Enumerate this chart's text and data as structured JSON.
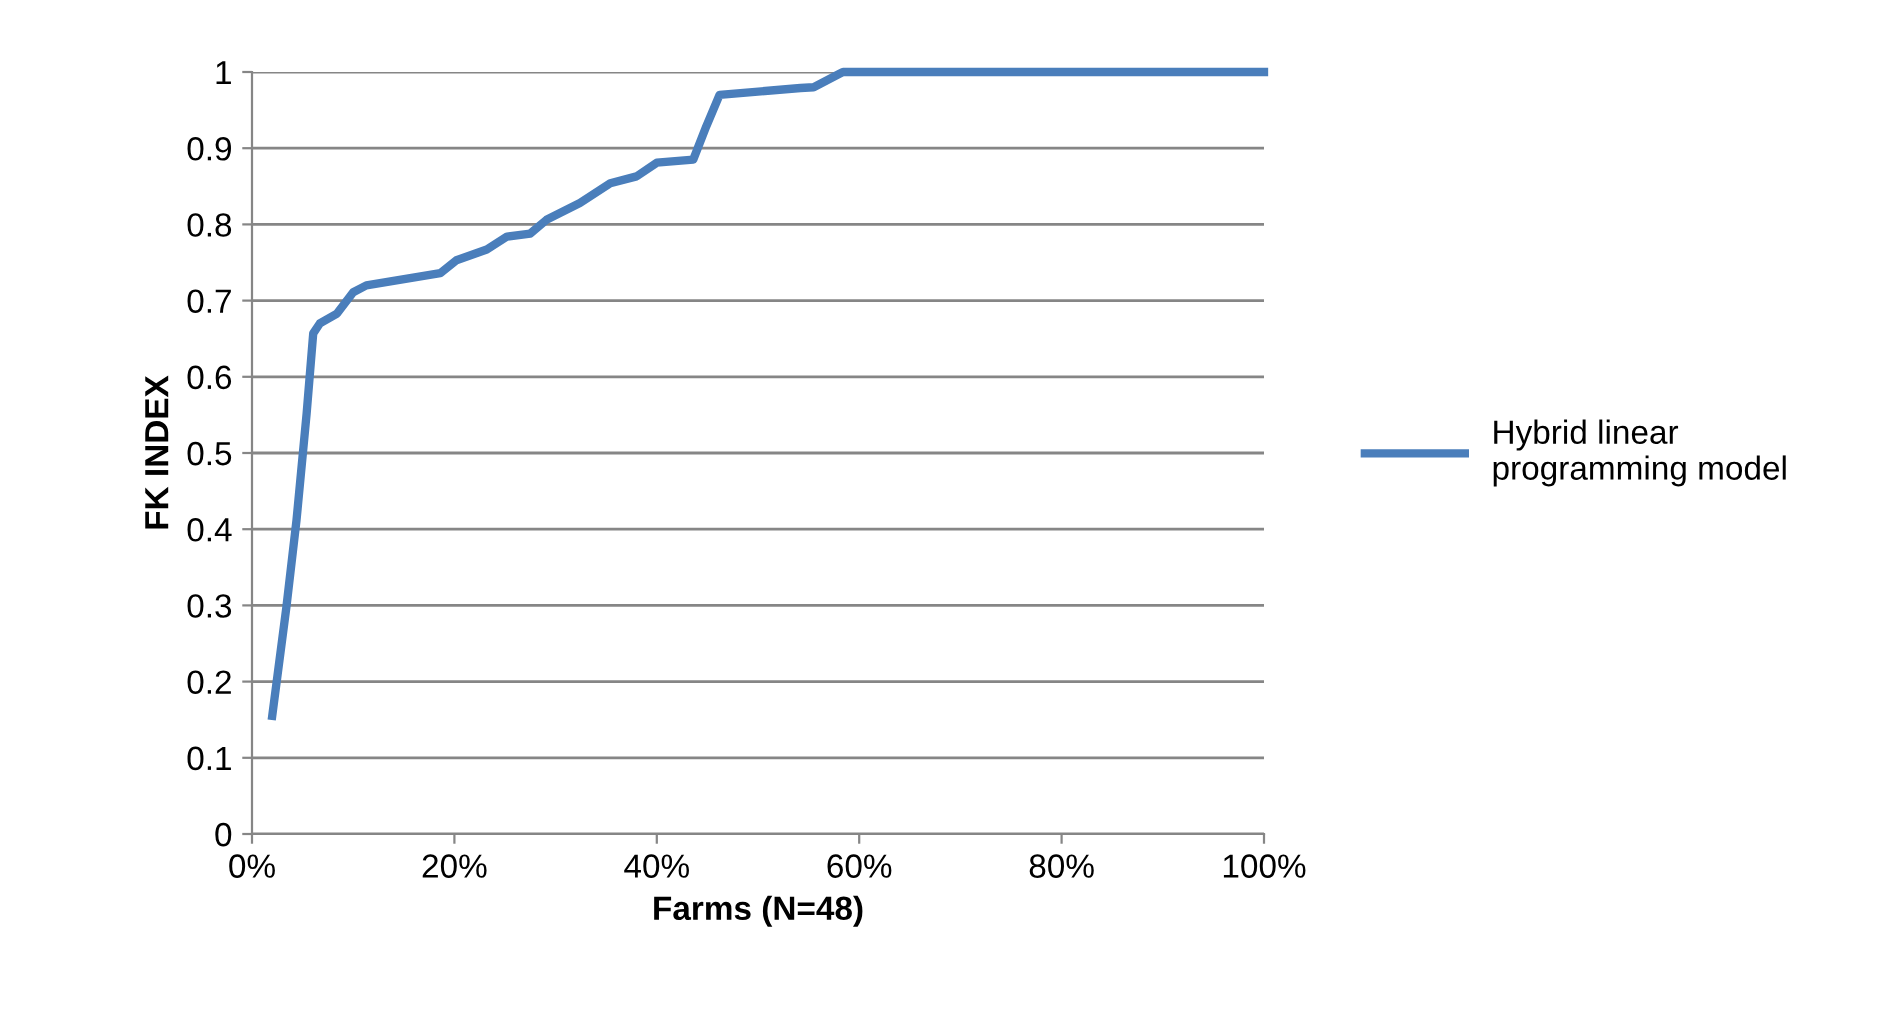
{
  "chart_data": {
    "type": "line",
    "xlabel": "Farms (N=48)",
    "ylabel": "FK INDEX",
    "x": [
      2.0,
      3.4,
      4.4,
      5.4,
      6.05,
      6.7,
      8.4,
      10.0,
      11.3,
      18.6,
      20.2,
      23.2,
      25.2,
      27.5,
      29.1,
      32.4,
      35.4,
      38.0,
      40.0,
      43.6,
      44.9,
      46.2,
      54.2,
      55.5,
      58.1,
      58.4,
      100
    ],
    "series": [
      {
        "name": "Hybrid linear programming model",
        "color": "#4a7ebb",
        "values": [
          0.155,
          0.298,
          0.412,
          0.552,
          0.657,
          0.67,
          0.683,
          0.711,
          0.72,
          0.736,
          0.753,
          0.767,
          0.784,
          0.788,
          0.806,
          0.828,
          0.854,
          0.863,
          0.881,
          0.885,
          0.929,
          0.97,
          0.979,
          0.98,
          0.998,
          1.0,
          1.0
        ]
      }
    ],
    "xlim": [
      0,
      100
    ],
    "xticks": [
      {
        "value": 0,
        "label": "0%"
      },
      {
        "value": 20,
        "label": "20%"
      },
      {
        "value": 40,
        "label": "40%"
      },
      {
        "value": 60,
        "label": "60%"
      },
      {
        "value": 80,
        "label": "80%"
      },
      {
        "value": 100,
        "label": "100%"
      }
    ],
    "ylim": [
      0,
      1
    ],
    "yticks": [
      0,
      0.1,
      0.2,
      0.3,
      0.4,
      0.5,
      0.6,
      0.7,
      0.8,
      0.9,
      1
    ],
    "grid": "y",
    "legend": "right",
    "marker": "none",
    "line_style": "solid"
  }
}
